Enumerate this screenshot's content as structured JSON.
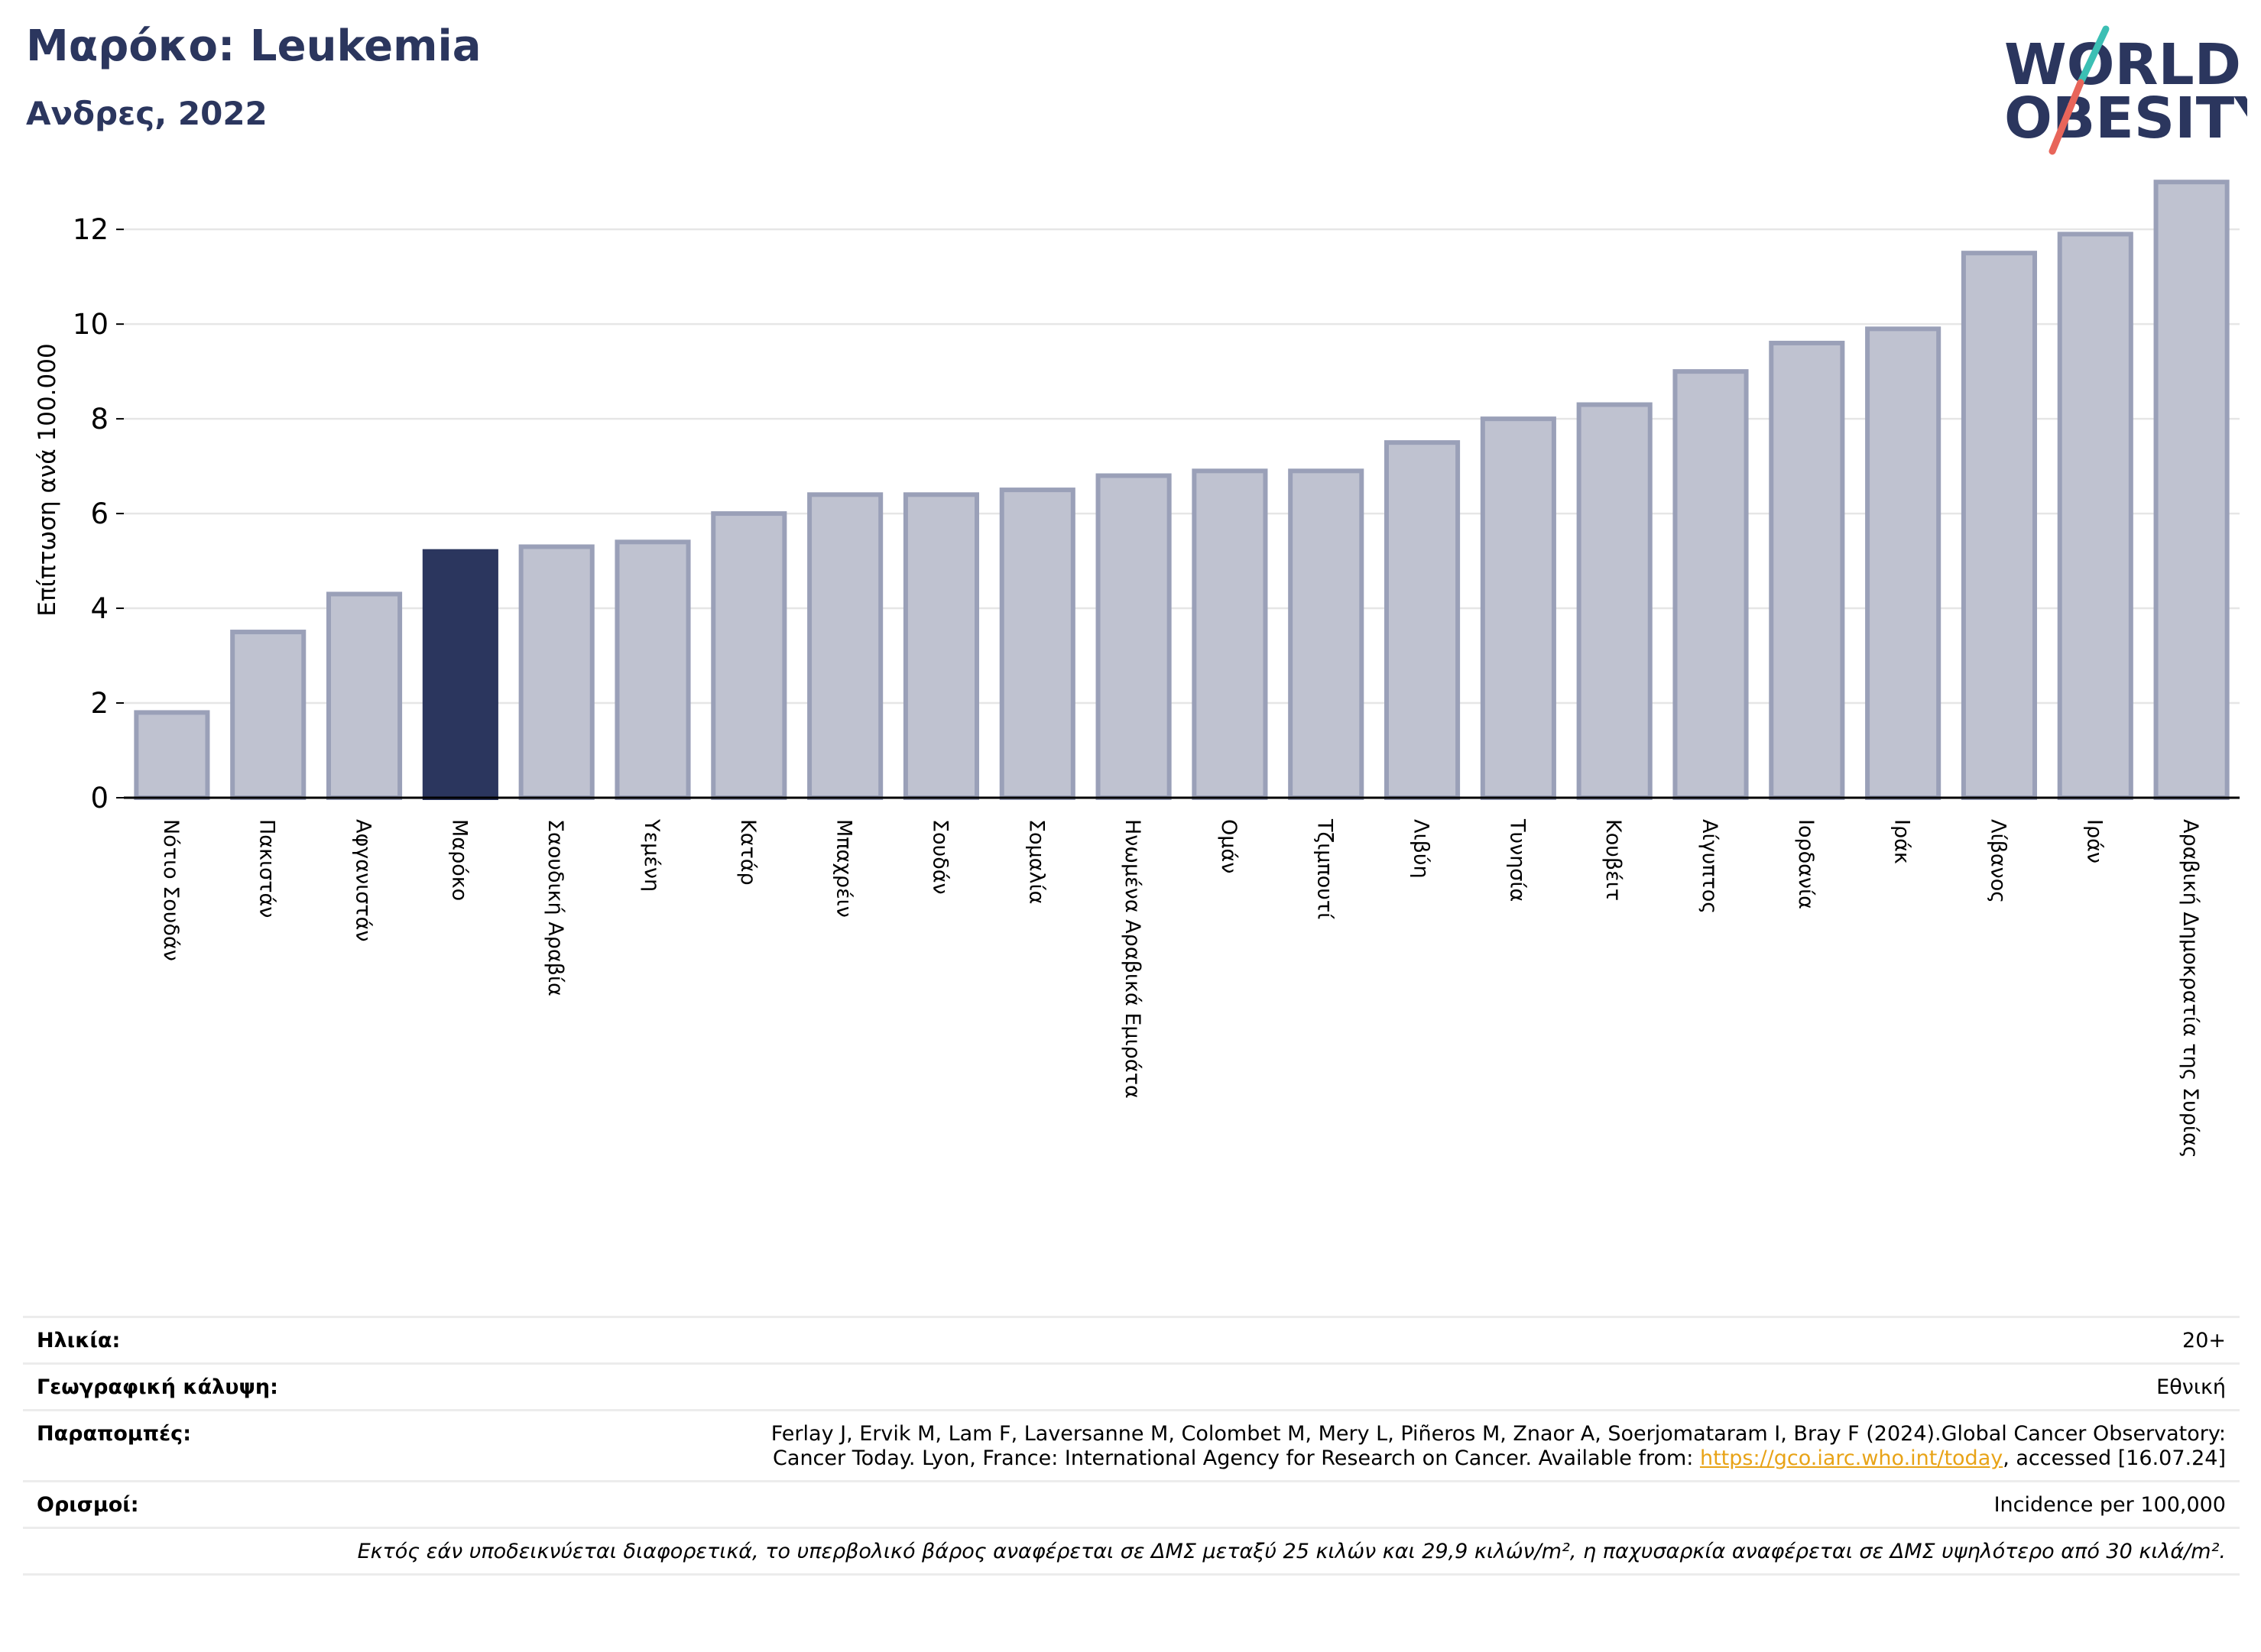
{
  "header": {
    "title": "Μαρόκο: Leukemia",
    "subtitle": "Ανδρες, 2022"
  },
  "logo": {
    "line1": "WORLD",
    "line2": "OBESITY",
    "colors": {
      "text": "#2b365e",
      "slash_top": "#3bbfb4",
      "slash_bottom": "#e8655a"
    }
  },
  "chart_data": {
    "type": "bar",
    "ylabel": "Επίπτωση ανά 100.000",
    "ylim": [
      0,
      13.1
    ],
    "yticks": [
      0,
      2,
      4,
      6,
      8,
      10,
      12
    ],
    "grid": true,
    "highlight": "Μαρόκο",
    "colors": {
      "bar": "#bfc2d0",
      "bar_edge": "#9aa0b8",
      "highlight": "#2b365e",
      "grid": "#e6e6e6",
      "axis": "#000000"
    },
    "categories": [
      "Νότιο Σουδάν",
      "Πακιστάν",
      "Αφγανιστάν",
      "Μαρόκο",
      "Σαουδική Αραβία",
      "Υεμένη",
      "Κατάρ",
      "Μπαχρέιν",
      "Σουδάν",
      "Σομαλία",
      "Ηνωμένα Αραβικά Εμιράτα",
      "Ομάν",
      "Τζιμπουτί",
      "Λιβύη",
      "Τυνησία",
      "Κουβέιτ",
      "Αίγυπτος",
      "Ιορδανία",
      "Ιράκ",
      "Λίβανος",
      "Ιράν",
      "Αραβική Δημοκρατία της Συρίας"
    ],
    "values": [
      1.8,
      3.5,
      4.3,
      5.2,
      5.3,
      5.4,
      6.0,
      6.4,
      6.4,
      6.5,
      6.8,
      6.9,
      6.9,
      7.5,
      8.0,
      8.3,
      9.0,
      9.6,
      9.9,
      11.5,
      11.9,
      13.0
    ]
  },
  "info": {
    "age_label": "Ηλικία:",
    "age_value": "20+",
    "coverage_label": "Γεωγραφική κάλυψη:",
    "coverage_value": "Εθνική",
    "references_label": "Παραπομπές:",
    "references_line1": "Ferlay J, Ervik M, Lam F, Laversanne M, Colombet M, Mery L, Piñeros M, Znaor A, Soerjomataram I, Bray F (2024).Global Cancer Observatory:",
    "references_line2_pre": "Cancer Today. Lyon, France: International Agency for Research on Cancer. Available from: ",
    "references_link": "https://gco.iarc.who.int/today",
    "references_line2_post": ", accessed [16.07.24]",
    "definitions_label": "Ορισμοί:",
    "definitions_value": "Incidence per 100,000",
    "note": "Εκτός εάν υποδεικνύεται διαφορετικά, το υπερβολικό βάρος αναφέρεται σε ΔΜΣ μεταξύ 25 κιλών και 29,9 κιλών/m², η παχυσαρκία αναφέρεται σε ΔΜΣ υψηλότερο από 30 κιλά/m²."
  }
}
